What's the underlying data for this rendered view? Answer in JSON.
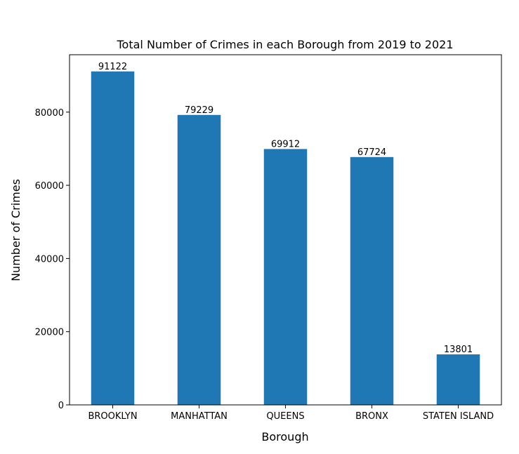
{
  "chart_data": {
    "type": "bar",
    "title": "Total Number of Crimes in each Borough from 2019 to 2021",
    "xlabel": "Borough",
    "ylabel": "Number of Crimes",
    "categories": [
      "BROOKLYN",
      "MANHATTAN",
      "QUEENS",
      "BRONX",
      "STATEN ISLAND"
    ],
    "values": [
      91122,
      79229,
      69912,
      67724,
      13801
    ],
    "data_labels": [
      "91122",
      "79229",
      "69912",
      "67724",
      "13801"
    ],
    "ylim": [
      0,
      95680
    ],
    "yticks": [
      0,
      20000,
      40000,
      60000,
      80000
    ],
    "ytick_labels": [
      "0",
      "20000",
      "40000",
      "60000",
      "80000"
    ],
    "grid": false,
    "bar_color": "#1f77b4"
  }
}
